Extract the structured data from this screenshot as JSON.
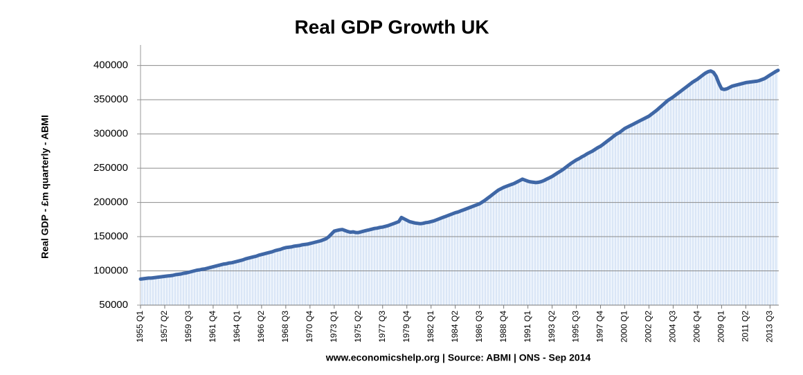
{
  "chart_data": {
    "type": "line",
    "title": "Real GDP Growth UK",
    "y_label": "Real GDP - £m quarterly - ABMI",
    "footer": "www.economicshelp.org | Source:  ABMI | ONS - Sep 2014",
    "color": "#3f67a6",
    "fill_color": "#dce8f7",
    "grid": true,
    "ylim": [
      50000,
      430000
    ],
    "yticks": [
      50000,
      100000,
      150000,
      200000,
      250000,
      300000,
      350000,
      400000
    ],
    "categories": [
      "1955 Q1",
      null,
      null,
      null,
      null,
      null,
      null,
      null,
      null,
      "1957 Q2",
      null,
      null,
      null,
      null,
      null,
      null,
      null,
      null,
      "1959 Q3",
      null,
      null,
      null,
      null,
      null,
      null,
      null,
      null,
      "1961 Q4",
      null,
      null,
      null,
      null,
      null,
      null,
      null,
      null,
      "1964 Q1",
      null,
      null,
      null,
      null,
      null,
      null,
      null,
      null,
      "1966 Q2",
      null,
      null,
      null,
      null,
      null,
      null,
      null,
      null,
      "1968 Q3",
      null,
      null,
      null,
      null,
      null,
      null,
      null,
      null,
      "1970 Q4",
      null,
      null,
      null,
      null,
      null,
      null,
      null,
      null,
      "1973 Q1",
      null,
      null,
      null,
      null,
      null,
      null,
      null,
      null,
      "1975 Q2",
      null,
      null,
      null,
      null,
      null,
      null,
      null,
      null,
      "1977 Q3",
      null,
      null,
      null,
      null,
      null,
      null,
      null,
      null,
      "1979 Q4",
      null,
      null,
      null,
      null,
      null,
      null,
      null,
      null,
      "1982 Q1",
      null,
      null,
      null,
      null,
      null,
      null,
      null,
      null,
      "1984 Q2",
      null,
      null,
      null,
      null,
      null,
      null,
      null,
      null,
      "1986 Q3",
      null,
      null,
      null,
      null,
      null,
      null,
      null,
      null,
      "1988 Q4",
      null,
      null,
      null,
      null,
      null,
      null,
      null,
      null,
      "1991 Q1",
      null,
      null,
      null,
      null,
      null,
      null,
      null,
      null,
      "1993 Q2",
      null,
      null,
      null,
      null,
      null,
      null,
      null,
      null,
      "1995 Q3",
      null,
      null,
      null,
      null,
      null,
      null,
      null,
      null,
      "1997 Q4",
      null,
      null,
      null,
      null,
      null,
      null,
      null,
      null,
      "2000 Q1",
      null,
      null,
      null,
      null,
      null,
      null,
      null,
      null,
      "2002 Q2",
      null,
      null,
      null,
      null,
      null,
      null,
      null,
      null,
      "2004 Q3",
      null,
      null,
      null,
      null,
      null,
      null,
      null,
      null,
      "2006 Q4",
      null,
      null,
      null,
      null,
      null,
      null,
      null,
      null,
      "2009 Q1",
      null,
      null,
      null,
      null,
      null,
      null,
      null,
      null,
      "2011 Q2",
      null,
      null,
      null,
      null,
      null,
      null,
      null,
      null,
      "2013 Q3",
      null,
      null,
      null
    ],
    "values": [
      88000,
      88500,
      89000,
      89500,
      89500,
      90000,
      90500,
      91000,
      91500,
      92000,
      92500,
      93000,
      93500,
      94500,
      95000,
      95500,
      96500,
      97000,
      98000,
      99000,
      100000,
      101000,
      101500,
      102500,
      103000,
      104000,
      105000,
      106000,
      107000,
      108000,
      109000,
      110000,
      110500,
      111500,
      112000,
      113000,
      114000,
      115000,
      116000,
      117500,
      118500,
      119500,
      120500,
      121500,
      123000,
      124000,
      125000,
      126000,
      127000,
      128000,
      129500,
      130500,
      131500,
      133000,
      134000,
      134500,
      135000,
      136000,
      136500,
      137000,
      138000,
      138500,
      139000,
      140000,
      141000,
      142000,
      143000,
      144000,
      145500,
      147000,
      150000,
      154000,
      158000,
      159000,
      160000,
      160500,
      159000,
      157500,
      156500,
      157000,
      156000,
      156000,
      157000,
      158000,
      159000,
      160000,
      161000,
      162000,
      162500,
      163500,
      164000,
      165000,
      166000,
      167500,
      169000,
      170500,
      172000,
      178000,
      176000,
      174000,
      172000,
      171000,
      170000,
      169500,
      169000,
      169500,
      170500,
      171000,
      172000,
      173000,
      174500,
      176000,
      177500,
      179000,
      180500,
      182000,
      183500,
      185000,
      186000,
      187500,
      189000,
      190500,
      192000,
      193500,
      195000,
      196500,
      198000,
      200500,
      203000,
      206000,
      209000,
      212000,
      215000,
      218000,
      220000,
      222000,
      223500,
      225000,
      226500,
      228000,
      230000,
      232000,
      234000,
      232500,
      231000,
      230000,
      229500,
      229000,
      229500,
      230500,
      232000,
      234000,
      236000,
      238000,
      240500,
      243000,
      245500,
      248000,
      251000,
      254000,
      257000,
      259500,
      262000,
      264000,
      266500,
      268500,
      271000,
      273000,
      275000,
      277500,
      280000,
      282000,
      285000,
      288000,
      291000,
      294000,
      297000,
      300000,
      302000,
      305000,
      308000,
      310000,
      312000,
      314000,
      316000,
      318000,
      320000,
      322000,
      324000,
      326000,
      329000,
      332000,
      335000,
      338500,
      342000,
      345500,
      349000,
      351500,
      354000,
      357000,
      360000,
      363000,
      366000,
      369000,
      372000,
      375000,
      377500,
      380000,
      383000,
      386000,
      389000,
      391000,
      392000,
      390000,
      384000,
      374000,
      366000,
      365000,
      366000,
      368000,
      370000,
      371000,
      372000,
      373000,
      374000,
      375000,
      375500,
      376000,
      376500,
      377000,
      378000,
      379500,
      381000,
      383500,
      386000,
      388500,
      391000,
      393000
    ]
  }
}
